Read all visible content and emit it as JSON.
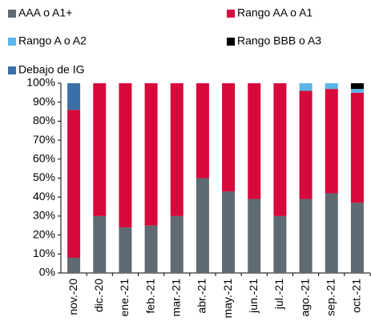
{
  "chart_data": {
    "type": "stacked_bar",
    "categories": [
      "nov.-20",
      "dic.-20",
      "ene.-21",
      "feb.-21",
      "mar.-21",
      "abr.-21",
      "may.-21",
      "jun.-21",
      "jul.-21",
      "ago.-21",
      "sep.-21",
      "oct.-21"
    ],
    "series": [
      {
        "name": "AAA o A1+",
        "color": "#5f6a72",
        "values": [
          8,
          30,
          24,
          25,
          30,
          50,
          43,
          39,
          30,
          39,
          42,
          37
        ]
      },
      {
        "name": "Rango AA o A1",
        "color": "#d7083a",
        "values": [
          78,
          70,
          76,
          75,
          70,
          50,
          57,
          61,
          70,
          57,
          55,
          58
        ]
      },
      {
        "name": "Rango A o A2",
        "color": "#5bb5e8",
        "values": [
          0,
          0,
          0,
          0,
          0,
          0,
          0,
          0,
          0,
          4,
          3,
          2
        ]
      },
      {
        "name": "Rango BBB o A3",
        "color": "#000000",
        "values": [
          0,
          0,
          0,
          0,
          0,
          0,
          0,
          0,
          0,
          0,
          0,
          3
        ]
      },
      {
        "name": "Debajo de IG",
        "color": "#3a6fa8",
        "values": [
          14,
          0,
          0,
          0,
          0,
          0,
          0,
          0,
          0,
          0,
          0,
          0
        ]
      }
    ],
    "ylim": [
      0,
      100
    ],
    "yticks": [
      {
        "value": 0,
        "label": "0%"
      },
      {
        "value": 10,
        "label": "10%"
      },
      {
        "value": 20,
        "label": "20%"
      },
      {
        "value": 30,
        "label": "30%"
      },
      {
        "value": 40,
        "label": "40%"
      },
      {
        "value": 50,
        "label": "50%"
      },
      {
        "value": 60,
        "label": "60%"
      },
      {
        "value": 70,
        "label": "70%"
      },
      {
        "value": 80,
        "label": "80%"
      },
      {
        "value": 90,
        "label": "90%"
      },
      {
        "value": 100,
        "label": "100%"
      }
    ],
    "legend": "top"
  }
}
